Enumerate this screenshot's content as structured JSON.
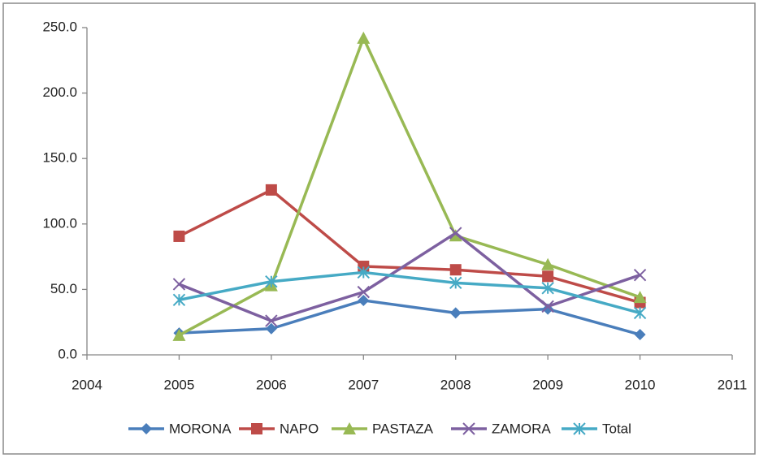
{
  "chart_data": {
    "type": "line",
    "x": [
      2005,
      2006,
      2007,
      2008,
      2009,
      2010
    ],
    "series": [
      {
        "name": "MORONA",
        "color": "#4a7ebb",
        "marker": "diamond",
        "values": [
          16.7,
          20,
          41.6,
          32,
          35,
          15.5
        ]
      },
      {
        "name": "NAPO",
        "color": "#be4b48",
        "marker": "square",
        "values": [
          90.6,
          126,
          67.6,
          65,
          60,
          40
        ]
      },
      {
        "name": "PASTAZA",
        "color": "#98b954",
        "marker": "triangle",
        "values": [
          15,
          53,
          242,
          91,
          69,
          44
        ]
      },
      {
        "name": "ZAMORA",
        "color": "#7d60a0",
        "marker": "x",
        "values": [
          54,
          26,
          48,
          93,
          37,
          61
        ]
      },
      {
        "name": "Total",
        "color": "#46aac5",
        "marker": "asterisk",
        "values": [
          42,
          56,
          63,
          55,
          51,
          32
        ]
      }
    ],
    "xlim": [
      2004,
      2011
    ],
    "xticks": [
      2004,
      2005,
      2006,
      2007,
      2008,
      2009,
      2010,
      2011
    ],
    "ylim": [
      0,
      250
    ],
    "yticks": [
      {
        "value": 0,
        "label": "0.0"
      },
      {
        "value": 50,
        "label": "50.0"
      },
      {
        "value": 100,
        "label": "100.0"
      },
      {
        "value": 150,
        "label": "150.0"
      },
      {
        "value": 200,
        "label": "200.0"
      },
      {
        "value": 250,
        "label": "250.0"
      }
    ],
    "grid": false,
    "legend": "bottom"
  }
}
